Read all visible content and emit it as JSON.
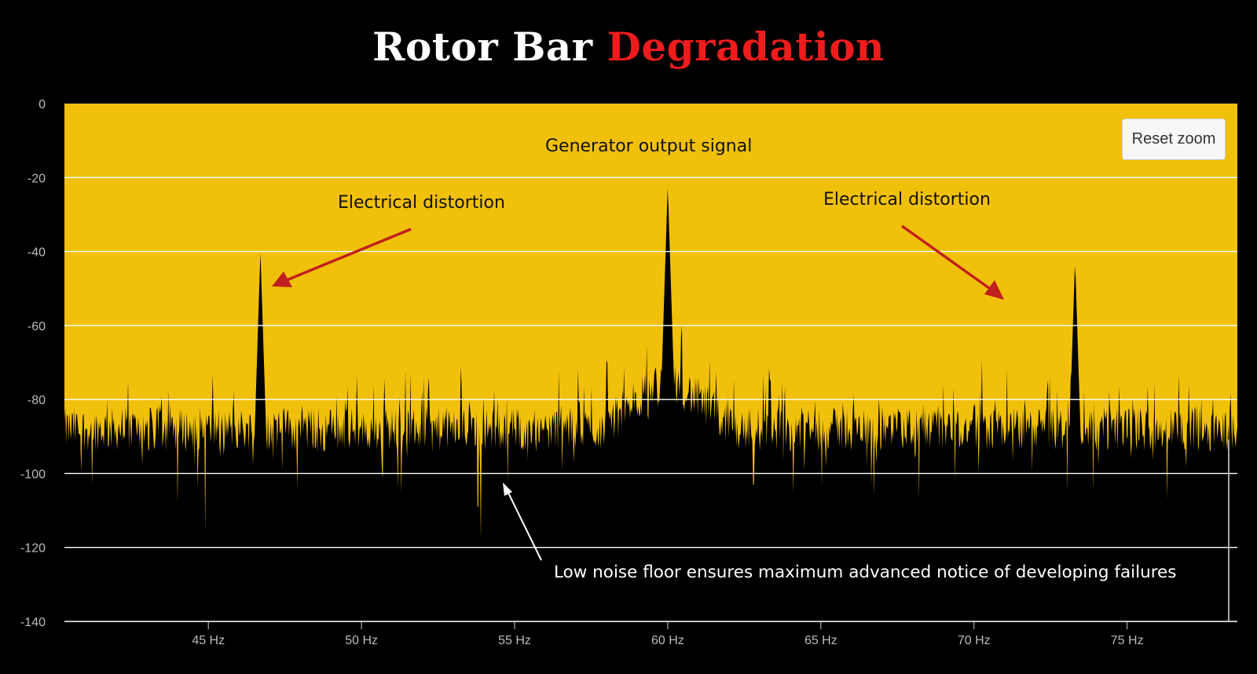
{
  "title": {
    "part1": "Rotor Bar ",
    "part2": "Degradation"
  },
  "reset_zoom_label": "Reset zoom",
  "colors": {
    "plot_background": "#f1c00a",
    "spectrum": "#000000",
    "grid": "#ffffff",
    "title_accent": "#ee1c1c",
    "arrow_red": "#c0201e",
    "arrow_white": "#ffffff"
  },
  "annotations": {
    "generator": "Generator output signal",
    "distortion_left": "Electrical distortion",
    "distortion_right": "Electrical distortion",
    "noise_floor": "Low noise floor ensures maximum advanced notice of developing failures"
  },
  "chart_data": {
    "type": "area",
    "title": "",
    "xlabel": "",
    "ylabel": "",
    "x_unit": "Hz",
    "xlim": [
      40.3,
      78.6
    ],
    "ylim": [
      -140,
      0
    ],
    "x_ticks": [
      45,
      50,
      55,
      60,
      65,
      70,
      75
    ],
    "x_tick_labels": [
      "45 Hz",
      "50 Hz",
      "55 Hz",
      "60 Hz",
      "65 Hz",
      "70 Hz",
      "75 Hz"
    ],
    "y_ticks": [
      0,
      -20,
      -40,
      -60,
      -80,
      -100,
      -120,
      -140
    ],
    "y_tick_labels": [
      "0",
      "-20",
      "-40",
      "-60",
      "-80",
      "-100",
      "-120",
      "-140"
    ],
    "grid": true,
    "noise_floor_db": -88,
    "series": [
      {
        "peaks": [
          {
            "freq": 46.7,
            "level": -40
          },
          {
            "freq": 60.0,
            "level": -22
          },
          {
            "freq": 73.3,
            "level": -42
          }
        ],
        "deep_dips": [
          {
            "freq": 44.0,
            "level": -108
          },
          {
            "freq": 44.9,
            "level": -116
          },
          {
            "freq": 53.9,
            "level": -118
          },
          {
            "freq": 53.8,
            "level": -109
          },
          {
            "freq": 41.2,
            "level": -103
          },
          {
            "freq": 47.9,
            "level": -104
          },
          {
            "freq": 51.3,
            "level": -105
          },
          {
            "freq": 68.2,
            "level": -107
          },
          {
            "freq": 73.9,
            "level": -105
          },
          {
            "freq": 76.3,
            "level": -107
          },
          {
            "freq": 64.1,
            "level": -105
          },
          {
            "freq": 62.8,
            "level": -103
          }
        ]
      }
    ]
  }
}
